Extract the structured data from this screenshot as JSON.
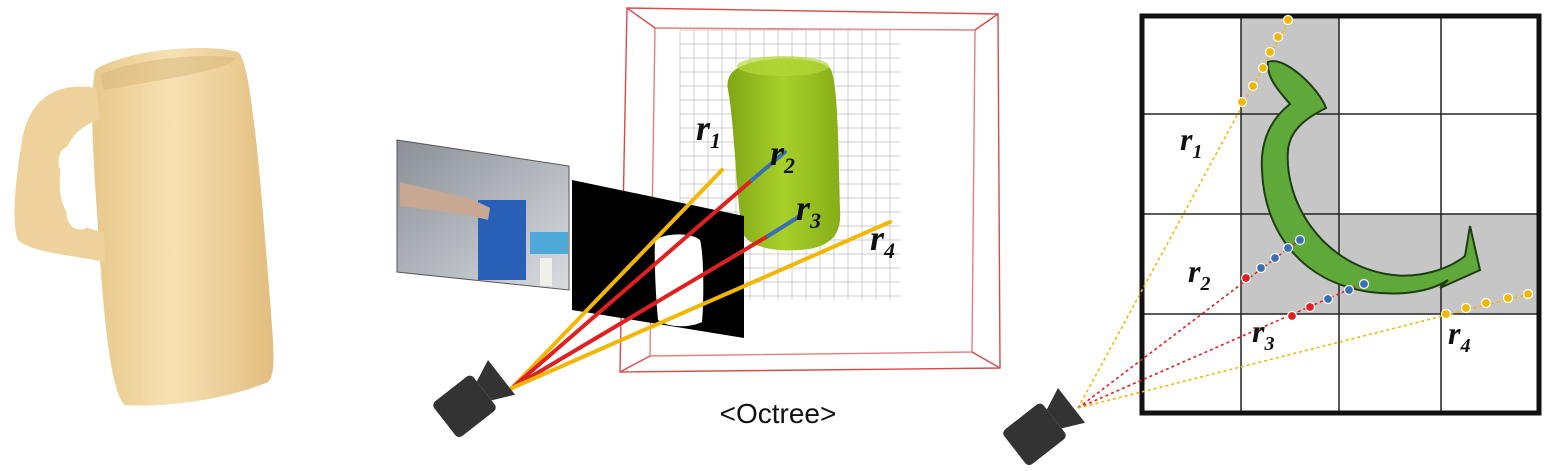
{
  "caption": "<Octree>",
  "ray_labels": {
    "octree": [
      {
        "base": "r",
        "sub": "1"
      },
      {
        "base": "r",
        "sub": "2"
      },
      {
        "base": "r",
        "sub": "3"
      },
      {
        "base": "r",
        "sub": "4"
      }
    ],
    "grid": [
      {
        "base": "r",
        "sub": "1"
      },
      {
        "base": "r",
        "sub": "2"
      },
      {
        "base": "r",
        "sub": "3"
      },
      {
        "base": "r",
        "sub": "4"
      }
    ]
  },
  "colors": {
    "mug": "#f3d9a4",
    "object_green": "#9dc61e",
    "shape_green": "#5fa83a",
    "ray_yellow": "#f2b705",
    "ray_red": "#e02020",
    "ray_blue": "#3a6fb5",
    "bbox_red": "#d84a4a",
    "grid_gray": "#c8c8c8",
    "camera": "#333333"
  }
}
